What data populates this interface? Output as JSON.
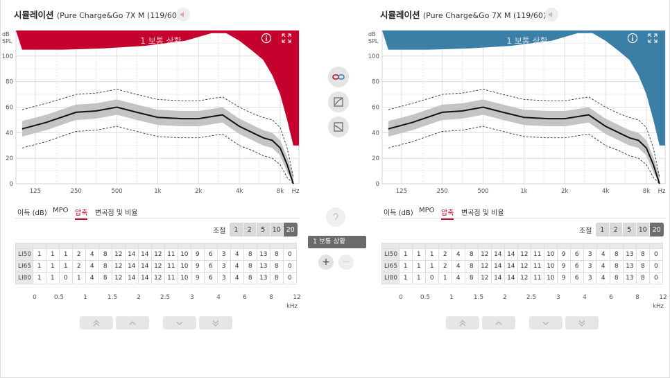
{
  "panels": [
    {
      "title": "시뮬레이션",
      "subtitle": "(Pure Charge&Go 7X M (119/60))",
      "accent": "#c4002f",
      "situation": "1 보통 상황",
      "tabs": [
        "이득 (dB)",
        "MPO",
        "압축",
        "변곡점 및 비율"
      ],
      "active_tab": 2,
      "adjust_label": "조절",
      "steps": [
        "1",
        "2",
        "5",
        "10",
        "20"
      ],
      "active_step": 4,
      "rows": [
        {
          "label": "LI50",
          "values": [
            "1",
            "1",
            "1",
            "2",
            "4",
            "8",
            "12",
            "14",
            "14",
            "12",
            "11",
            "10",
            "9",
            "6",
            "3",
            "4",
            "8",
            "13",
            "8",
            "0"
          ]
        },
        {
          "label": "LI65",
          "values": [
            "1",
            "1",
            "1",
            "2",
            "4",
            "8",
            "12",
            "14",
            "14",
            "12",
            "11",
            "10",
            "9",
            "6",
            "3",
            "4",
            "8",
            "13",
            "8",
            "0"
          ]
        },
        {
          "label": "LI80",
          "values": [
            "1",
            "1",
            "0",
            "1",
            "4",
            "8",
            "12",
            "14",
            "14",
            "12",
            "11",
            "10",
            "9",
            "6",
            "3",
            "4",
            "8",
            "13",
            "8",
            "0"
          ]
        }
      ]
    },
    {
      "title": "시뮬레이션",
      "subtitle": "(Pure Charge&Go 7X M (119/60))",
      "accent": "#3b7ea6",
      "situation": "1 보통 상황",
      "tabs": [
        "이득 (dB)",
        "MPO",
        "압축",
        "변곡점 및 비율"
      ],
      "active_tab": 2,
      "adjust_label": "조절",
      "steps": [
        "1",
        "2",
        "5",
        "10",
        "20"
      ],
      "active_step": 4,
      "rows": [
        {
          "label": "LI50",
          "values": [
            "1",
            "1",
            "1",
            "2",
            "4",
            "8",
            "12",
            "14",
            "14",
            "12",
            "11",
            "10",
            "9",
            "6",
            "3",
            "4",
            "8",
            "13",
            "8",
            "0"
          ]
        },
        {
          "label": "LI65",
          "values": [
            "1",
            "1",
            "1",
            "2",
            "4",
            "8",
            "12",
            "14",
            "14",
            "12",
            "11",
            "10",
            "9",
            "6",
            "3",
            "4",
            "8",
            "13",
            "8",
            "0"
          ]
        },
        {
          "label": "LI80",
          "values": [
            "1",
            "1",
            "0",
            "1",
            "4",
            "8",
            "12",
            "14",
            "14",
            "12",
            "11",
            "10",
            "9",
            "6",
            "3",
            "4",
            "8",
            "13",
            "8",
            "0"
          ]
        }
      ]
    }
  ],
  "khz_ticks": [
    "0",
    "0.5",
    "1",
    "1.5",
    "2",
    "2.5",
    "3",
    "4",
    "6",
    "8",
    "12"
  ],
  "khz_unit": "kHz",
  "center": {
    "program_label": "1  보통 상황"
  },
  "chart_data": [
    {
      "type": "area",
      "ylabel": "dB SPL",
      "xlabel": "Hz",
      "ylim": [
        0,
        120
      ],
      "x_tick_labels": [
        "125",
        "250",
        "500",
        "1k",
        "2k",
        "4k",
        "8k"
      ],
      "y_tick_labels": [
        "0",
        "20",
        "40",
        "60",
        "80",
        "100"
      ],
      "grid": true,
      "mpo_fill": {
        "x_hz": [
          100,
          200,
          400,
          800,
          1600,
          2500,
          3200,
          4000,
          5000,
          6000,
          7000,
          8000,
          9000,
          10000
        ],
        "y_db": [
          105,
          105,
          106,
          108,
          112,
          118,
          118,
          112,
          104,
          97,
          85,
          70,
          50,
          30
        ]
      },
      "median": {
        "x_hz": [
          100,
          150,
          250,
          350,
          500,
          700,
          1000,
          1500,
          2000,
          3000,
          4000,
          5000,
          6000,
          7000,
          8000,
          9000,
          10000
        ],
        "y_db": [
          43,
          48,
          56,
          57,
          60,
          56,
          52,
          51,
          51,
          54,
          45,
          40,
          36,
          34,
          28,
          15,
          0
        ]
      },
      "band_halfwidth_db": 6,
      "upper_dashed": {
        "x_hz": [
          100,
          150,
          250,
          350,
          500,
          700,
          1000,
          1500,
          2000,
          3000,
          4000,
          5000,
          6000,
          7000,
          8000,
          9000,
          10000
        ],
        "y_db": [
          58,
          63,
          70,
          71,
          74,
          70,
          66,
          65,
          65,
          68,
          60,
          55,
          52,
          50,
          44,
          28,
          5
        ]
      },
      "lower_dashed": {
        "x_hz": [
          100,
          150,
          250,
          350,
          500,
          700,
          1000,
          1500,
          2000,
          3000,
          4000,
          5000,
          6000,
          7000,
          8000,
          9000,
          10000
        ],
        "y_db": [
          28,
          33,
          41,
          42,
          45,
          41,
          37,
          36,
          36,
          39,
          30,
          26,
          22,
          20,
          15,
          5,
          0
        ]
      }
    }
  ]
}
